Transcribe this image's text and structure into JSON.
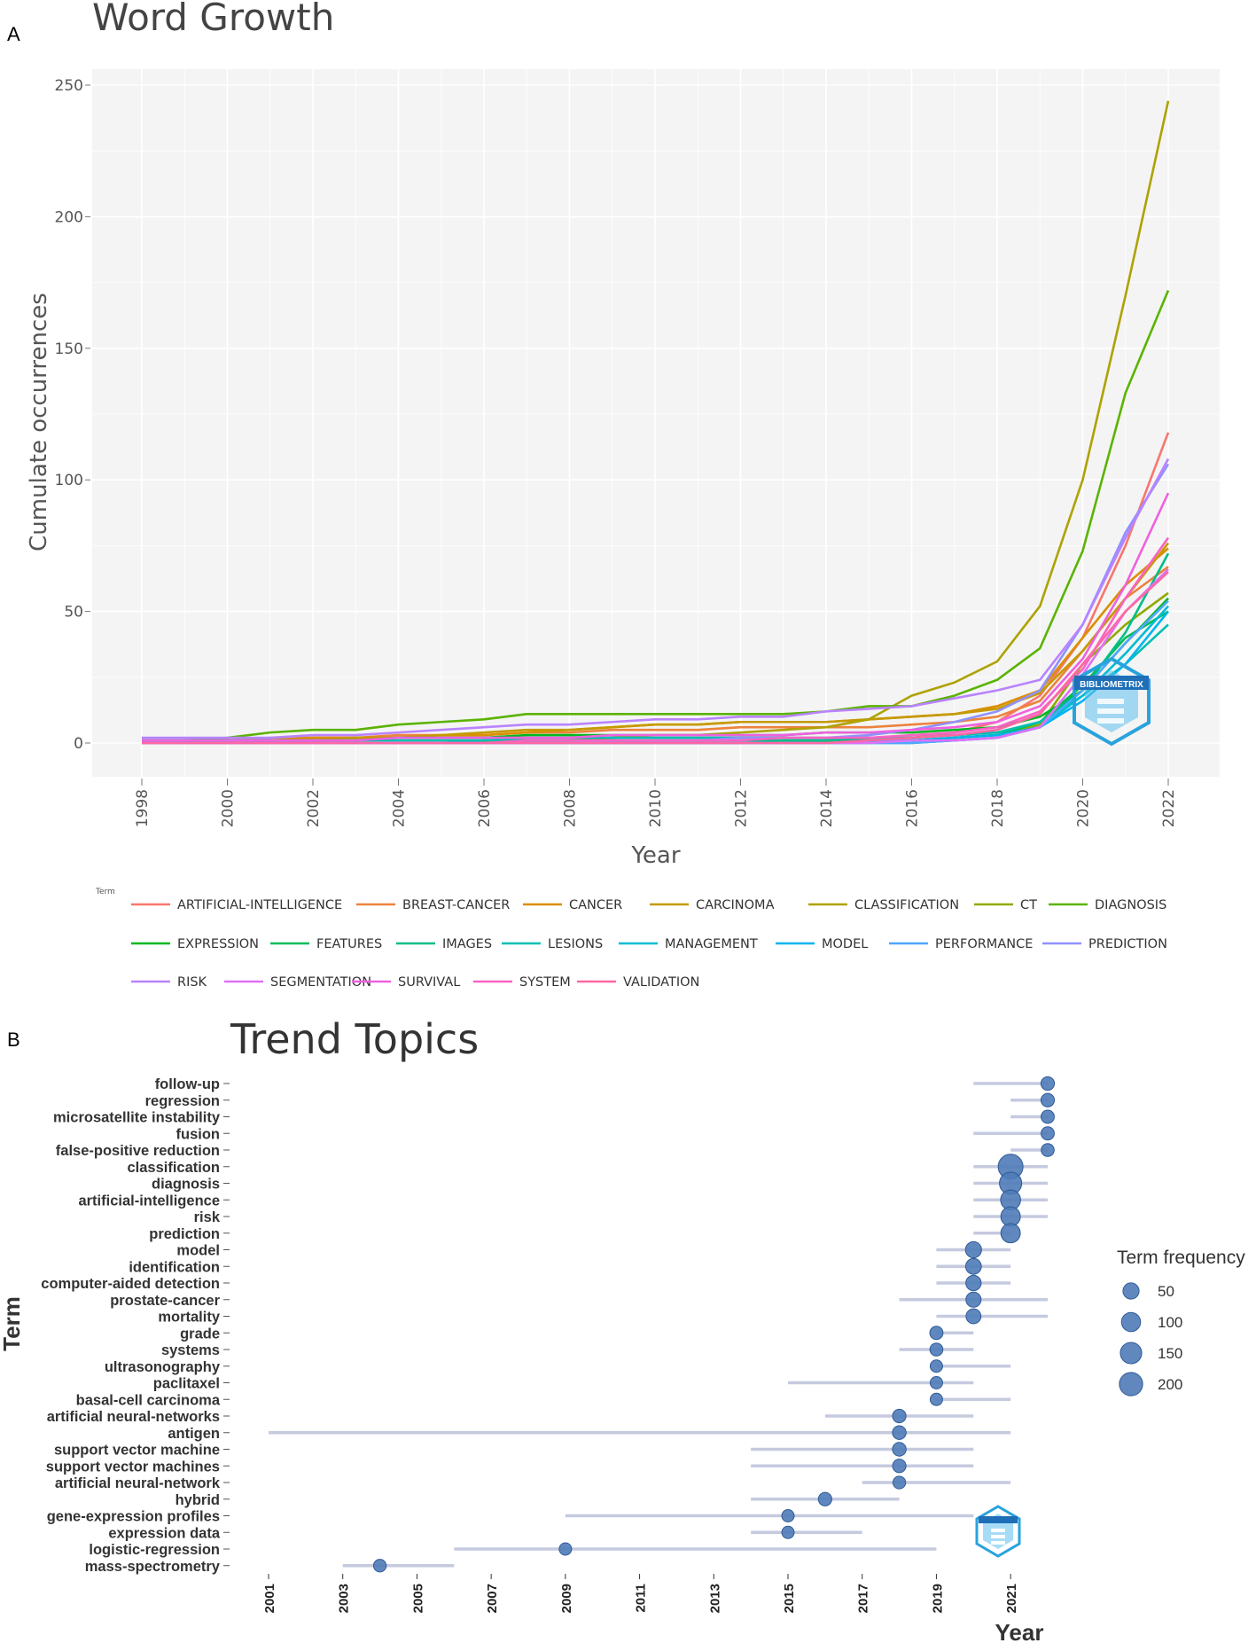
{
  "panel_a_label": "A",
  "panel_b_label": "B",
  "chart_data": [
    {
      "type": "line",
      "title": "Word Growth",
      "xlabel": "Year",
      "ylabel": "Cumulate occurrences",
      "xlim": [
        1998,
        2022
      ],
      "ylim": [
        0,
        250
      ],
      "x_ticks": [
        "1998",
        "2000",
        "2002",
        "2004",
        "2006",
        "2008",
        "2010",
        "2012",
        "2014",
        "2016",
        "2018",
        "2020",
        "2022"
      ],
      "y_ticks": [
        "0",
        "50",
        "100",
        "150",
        "200",
        "250"
      ],
      "legend_title": "Term",
      "x": [
        1998,
        1999,
        2000,
        2001,
        2002,
        2003,
        2004,
        2005,
        2006,
        2007,
        2008,
        2009,
        2010,
        2011,
        2012,
        2013,
        2014,
        2015,
        2016,
        2017,
        2018,
        2019,
        2020,
        2021,
        2022
      ],
      "series": [
        {
          "name": "ARTIFICIAL-INTELLIGENCE",
          "color": "#F8766D",
          "values": [
            0,
            0,
            0,
            0,
            0,
            0,
            0,
            0,
            0,
            0,
            0,
            0,
            0,
            0,
            0,
            0,
            1,
            1,
            2,
            4,
            8,
            18,
            40,
            75,
            118
          ]
        },
        {
          "name": "BREAST-CANCER",
          "color": "#EC823C",
          "values": [
            1,
            1,
            1,
            2,
            2,
            2,
            3,
            3,
            3,
            4,
            4,
            5,
            5,
            5,
            6,
            6,
            6,
            6,
            7,
            8,
            10,
            16,
            35,
            55,
            67
          ]
        },
        {
          "name": "CANCER",
          "color": "#DB8E00",
          "values": [
            1,
            1,
            1,
            1,
            2,
            2,
            2,
            3,
            3,
            4,
            5,
            6,
            7,
            7,
            8,
            8,
            8,
            9,
            10,
            11,
            14,
            20,
            40,
            60,
            74
          ]
        },
        {
          "name": "CARCINOMA",
          "color": "#C59A00",
          "values": [
            0,
            0,
            1,
            1,
            1,
            2,
            2,
            3,
            4,
            5,
            5,
            6,
            7,
            7,
            8,
            8,
            8,
            9,
            10,
            11,
            13,
            19,
            35,
            55,
            76
          ]
        },
        {
          "name": "CLASSIFICATION",
          "color": "#AEA200",
          "values": [
            0,
            0,
            0,
            0,
            0,
            0,
            0,
            0,
            1,
            1,
            1,
            2,
            3,
            3,
            4,
            5,
            6,
            9,
            18,
            23,
            31,
            52,
            100,
            170,
            244
          ]
        },
        {
          "name": "CT",
          "color": "#8FAA00",
          "values": [
            0,
            0,
            0,
            0,
            0,
            0,
            0,
            0,
            0,
            0,
            0,
            0,
            0,
            0,
            0,
            0,
            1,
            1,
            1,
            2,
            3,
            7,
            30,
            45,
            57
          ]
        },
        {
          "name": "DIAGNOSIS",
          "color": "#5BB300",
          "values": [
            1,
            1,
            2,
            4,
            5,
            5,
            7,
            8,
            9,
            11,
            11,
            11,
            11,
            11,
            11,
            11,
            12,
            14,
            14,
            18,
            24,
            36,
            73,
            133,
            172
          ]
        },
        {
          "name": "EXPRESSION",
          "color": "#00B81F",
          "values": [
            1,
            1,
            1,
            1,
            1,
            1,
            2,
            2,
            2,
            3,
            3,
            3,
            3,
            3,
            3,
            3,
            4,
            4,
            4,
            5,
            6,
            10,
            20,
            38,
            55
          ]
        },
        {
          "name": "FEATURES",
          "color": "#00BC59",
          "values": [
            0,
            0,
            0,
            0,
            0,
            0,
            0,
            0,
            0,
            0,
            0,
            0,
            0,
            0,
            0,
            1,
            1,
            1,
            1,
            2,
            3,
            8,
            22,
            40,
            50
          ]
        },
        {
          "name": "IMAGES",
          "color": "#00BE89",
          "values": [
            0,
            0,
            0,
            0,
            0,
            0,
            0,
            0,
            1,
            1,
            1,
            1,
            1,
            1,
            1,
            1,
            1,
            2,
            2,
            3,
            4,
            8,
            20,
            42,
            72
          ]
        },
        {
          "name": "LESIONS",
          "color": "#00BFB1",
          "values": [
            1,
            1,
            1,
            1,
            1,
            1,
            1,
            1,
            1,
            2,
            2,
            2,
            2,
            2,
            2,
            2,
            2,
            2,
            2,
            3,
            4,
            8,
            18,
            30,
            45
          ]
        },
        {
          "name": "MANAGEMENT",
          "color": "#00BCD4",
          "values": [
            0,
            0,
            0,
            0,
            0,
            0,
            0,
            0,
            0,
            0,
            0,
            0,
            0,
            0,
            0,
            0,
            0,
            0,
            0,
            1,
            2,
            6,
            18,
            34,
            52
          ]
        },
        {
          "name": "MODEL",
          "color": "#00B5EE",
          "values": [
            0,
            0,
            0,
            0,
            0,
            0,
            0,
            0,
            0,
            0,
            0,
            0,
            0,
            0,
            0,
            0,
            0,
            1,
            1,
            2,
            3,
            6,
            16,
            30,
            50
          ]
        },
        {
          "name": "PERFORMANCE",
          "color": "#4EA7FF",
          "values": [
            0,
            0,
            0,
            0,
            0,
            0,
            0,
            0,
            0,
            0,
            0,
            0,
            0,
            0,
            0,
            0,
            0,
            0,
            0,
            1,
            2,
            6,
            20,
            38,
            54
          ]
        },
        {
          "name": "PREDICTION",
          "color": "#8F91FF",
          "values": [
            0,
            0,
            0,
            0,
            0,
            0,
            0,
            0,
            0,
            0,
            0,
            1,
            1,
            1,
            2,
            2,
            2,
            3,
            5,
            8,
            12,
            20,
            45,
            80,
            106
          ]
        },
        {
          "name": "RISK",
          "color": "#B983FF",
          "values": [
            2,
            2,
            2,
            2,
            3,
            3,
            4,
            5,
            6,
            7,
            7,
            8,
            9,
            9,
            10,
            10,
            12,
            13,
            14,
            17,
            20,
            24,
            45,
            78,
            108
          ]
        },
        {
          "name": "SEGMENTATION",
          "color": "#DF70F8",
          "values": [
            0,
            0,
            0,
            0,
            0,
            0,
            0,
            0,
            0,
            0,
            0,
            0,
            0,
            0,
            0,
            0,
            0,
            0,
            1,
            1,
            2,
            6,
            26,
            50,
            66
          ]
        },
        {
          "name": "SURVIVAL",
          "color": "#EE61DF",
          "values": [
            1,
            1,
            1,
            1,
            1,
            1,
            2,
            2,
            2,
            2,
            2,
            3,
            3,
            3,
            3,
            3,
            4,
            4,
            5,
            6,
            8,
            14,
            32,
            60,
            95
          ]
        },
        {
          "name": "SYSTEM",
          "color": "#FA62C4",
          "values": [
            0,
            0,
            0,
            0,
            0,
            0,
            0,
            0,
            0,
            1,
            1,
            1,
            1,
            1,
            1,
            2,
            2,
            2,
            3,
            4,
            6,
            12,
            28,
            55,
            78
          ]
        },
        {
          "name": "VALIDATION",
          "color": "#FF67A4",
          "values": [
            0,
            0,
            0,
            0,
            0,
            0,
            0,
            0,
            0,
            0,
            0,
            0,
            0,
            0,
            0,
            0,
            0,
            1,
            2,
            3,
            5,
            11,
            30,
            50,
            65
          ]
        }
      ]
    },
    {
      "type": "scatter",
      "title": "Trend Topics",
      "xlabel": "Year",
      "ylabel": "Term",
      "xlim": [
        2001,
        2022
      ],
      "x_ticks": [
        "2001",
        "2003",
        "2005",
        "2007",
        "2009",
        "2011",
        "2013",
        "2015",
        "2017",
        "2019",
        "2021"
      ],
      "size_legend_title": "Term frequency",
      "size_legend": [
        50,
        100,
        150,
        200
      ],
      "terms": [
        {
          "term": "follow-up",
          "q1": 2020,
          "median": 2022,
          "q3": 2022,
          "freq": 20
        },
        {
          "term": "regression",
          "q1": 2021,
          "median": 2022,
          "q3": 2022,
          "freq": 20
        },
        {
          "term": "microsatellite instability",
          "q1": 2021,
          "median": 2022,
          "q3": 2022,
          "freq": 18
        },
        {
          "term": "fusion",
          "q1": 2020,
          "median": 2022,
          "q3": 2022,
          "freq": 18
        },
        {
          "term": "false-positive reduction",
          "q1": 2021,
          "median": 2022,
          "q3": 2022,
          "freq": 16
        },
        {
          "term": "classification",
          "q1": 2020,
          "median": 2021,
          "q3": 2022,
          "freq": 244
        },
        {
          "term": "diagnosis",
          "q1": 2020,
          "median": 2021,
          "q3": 2022,
          "freq": 172
        },
        {
          "term": "artificial-intelligence",
          "q1": 2020,
          "median": 2021,
          "q3": 2022,
          "freq": 118
        },
        {
          "term": "risk",
          "q1": 2020,
          "median": 2021,
          "q3": 2022,
          "freq": 108
        },
        {
          "term": "prediction",
          "q1": 2020,
          "median": 2021,
          "q3": 2021,
          "freq": 106
        },
        {
          "term": "model",
          "q1": 2019,
          "median": 2020,
          "q3": 2021,
          "freq": 50
        },
        {
          "term": "identification",
          "q1": 2019,
          "median": 2020,
          "q3": 2021,
          "freq": 45
        },
        {
          "term": "computer-aided detection",
          "q1": 2019,
          "median": 2020,
          "q3": 2021,
          "freq": 40
        },
        {
          "term": "prostate-cancer",
          "q1": 2018,
          "median": 2020,
          "q3": 2022,
          "freq": 38
        },
        {
          "term": "mortality",
          "q1": 2019,
          "median": 2020,
          "q3": 2022,
          "freq": 35
        },
        {
          "term": "grade",
          "q1": 2019,
          "median": 2019,
          "q3": 2020,
          "freq": 18
        },
        {
          "term": "systems",
          "q1": 2018,
          "median": 2019,
          "q3": 2020,
          "freq": 16
        },
        {
          "term": "ultrasonography",
          "q1": 2019,
          "median": 2019,
          "q3": 2021,
          "freq": 12
        },
        {
          "term": "paclitaxel",
          "q1": 2015,
          "median": 2019,
          "q3": 2020,
          "freq": 12
        },
        {
          "term": "basal-cell carcinoma",
          "q1": 2019,
          "median": 2019,
          "q3": 2021,
          "freq": 12
        },
        {
          "term": "artificial neural-networks",
          "q1": 2016,
          "median": 2018,
          "q3": 2020,
          "freq": 20
        },
        {
          "term": "antigen",
          "q1": 2001,
          "median": 2018,
          "q3": 2021,
          "freq": 22
        },
        {
          "term": "support vector machine",
          "q1": 2014,
          "median": 2018,
          "q3": 2020,
          "freq": 22
        },
        {
          "term": "support vector machines",
          "q1": 2014,
          "median": 2018,
          "q3": 2020,
          "freq": 20
        },
        {
          "term": "artificial neural-network",
          "q1": 2017,
          "median": 2018,
          "q3": 2021,
          "freq": 14
        },
        {
          "term": "hybrid",
          "q1": 2014,
          "median": 2016,
          "q3": 2018,
          "freq": 20
        },
        {
          "term": "gene-expression profiles",
          "q1": 2009,
          "median": 2015,
          "q3": 2020,
          "freq": 12
        },
        {
          "term": "expression data",
          "q1": 2014,
          "median": 2015,
          "q3": 2017,
          "freq": 12
        },
        {
          "term": "logistic-regression",
          "q1": 2006,
          "median": 2009,
          "q3": 2019,
          "freq": 12
        },
        {
          "term": "mass-spectrometry",
          "q1": 2003,
          "median": 2004,
          "q3": 2006,
          "freq": 14
        }
      ]
    }
  ],
  "watermark": {
    "text": "BIBLIOMETRIX",
    "color": "#29A3DC"
  }
}
